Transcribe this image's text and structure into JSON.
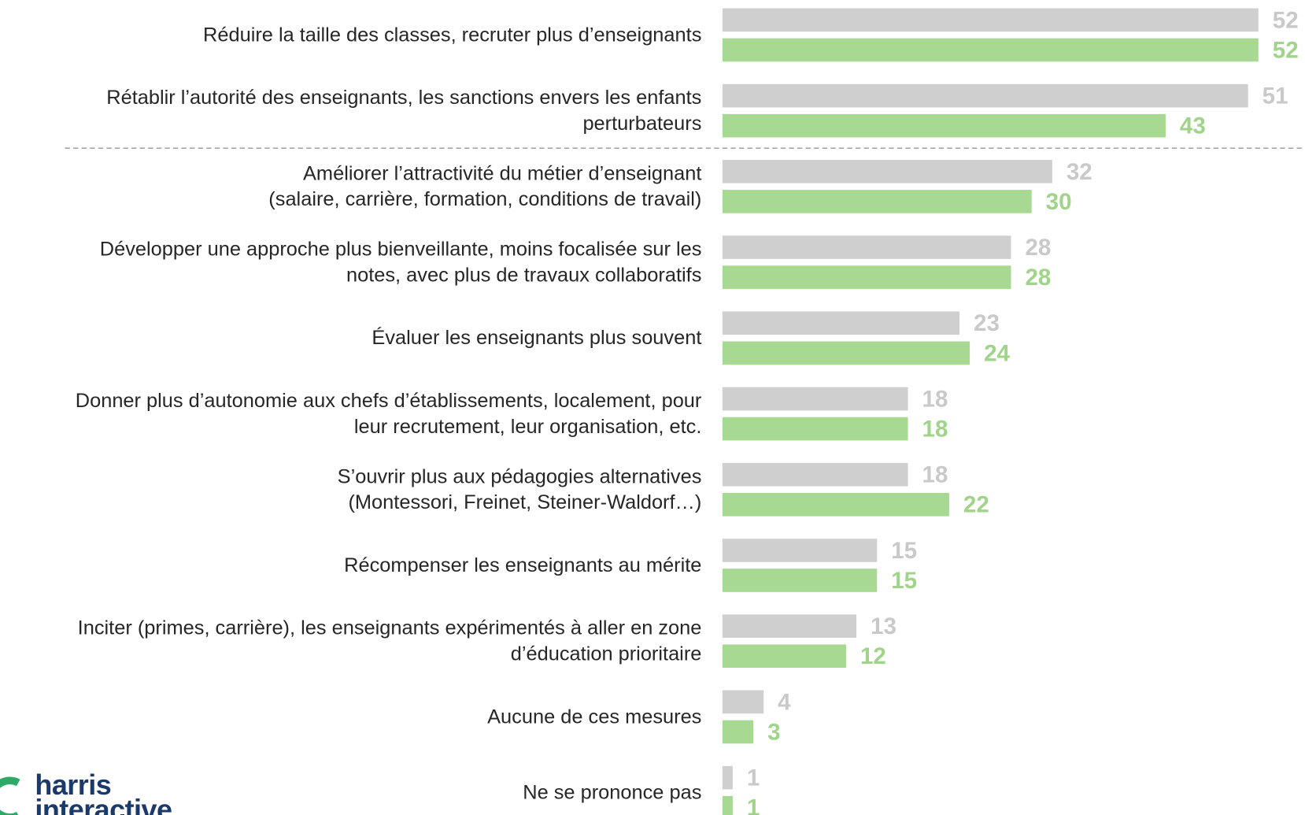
{
  "chart_data": {
    "type": "bar",
    "orientation": "horizontal",
    "categories": [
      "Réduire la taille des classes, recruter plus d’enseignants",
      "Rétablir l’autorité des enseignants, les sanctions envers les enfants\nperturbateurs",
      "Améliorer l’attractivité du métier d’enseignant\n(salaire, carrière, formation, conditions de travail)",
      "Développer une approche plus bienveillante, moins focalisée sur les\nnotes, avec plus de travaux collaboratifs",
      "Évaluer les enseignants plus souvent",
      "Donner plus d’autonomie aux chefs d’établissements, localement, pour\nleur recrutement, leur organisation, etc.",
      "S’ouvrir plus aux pédagogies alternatives\n(Montessori, Freinet, Steiner-Waldorf…)",
      "Récompenser les enseignants au mérite",
      "Inciter (primes, carrière), les enseignants expérimentés à aller en zone\nd’éducation prioritaire",
      "Aucune de ces mesures",
      "Ne se prononce pas"
    ],
    "series": [
      {
        "color": "#d0cfd0",
        "label_color": "#c9c9c9",
        "values": [
          52,
          51,
          32,
          28,
          23,
          18,
          18,
          15,
          13,
          4,
          1
        ]
      },
      {
        "color": "#a8d993",
        "label_color": "#a0d48a",
        "values": [
          52,
          43,
          30,
          28,
          24,
          18,
          22,
          15,
          12,
          3,
          1
        ]
      }
    ],
    "logo": "harris\ninteractive"
  }
}
